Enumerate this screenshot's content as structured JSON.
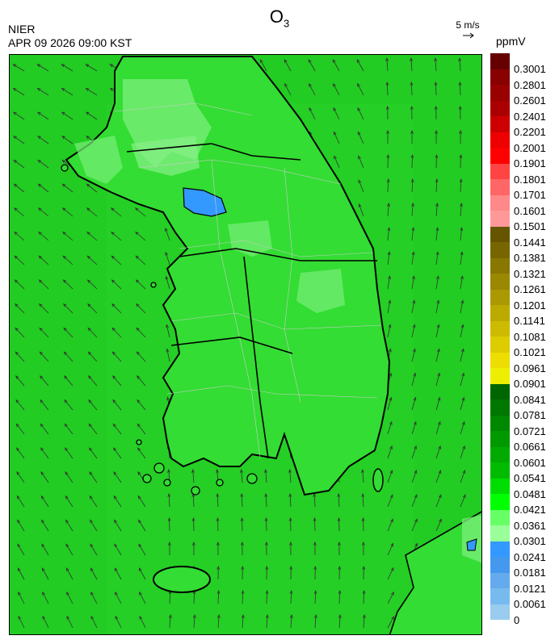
{
  "title": {
    "species": "O",
    "subscript": "3"
  },
  "agency": "NIER",
  "datetime": "APR 09 2026 09:00 KST",
  "wind_reference": {
    "label": "5 m/s",
    "arrow": "→"
  },
  "unit": "ppmV",
  "colors": {
    "sea": "#22cc22",
    "land": "#33dd33",
    "light_patch": "#77ee77",
    "high_patch": "#3399ff",
    "coast": "#000000",
    "border": "#cccccc"
  },
  "legend": {
    "labels": [
      "0.3001",
      "0.2801",
      "0.2601",
      "0.2401",
      "0.2201",
      "0.2001",
      "0.1901",
      "0.1801",
      "0.1701",
      "0.1601",
      "0.1501",
      "0.1441",
      "0.1381",
      "0.1321",
      "0.1261",
      "0.1201",
      "0.1141",
      "0.1081",
      "0.1021",
      "0.0961",
      "0.0901",
      "0.0841",
      "0.0781",
      "0.0721",
      "0.0661",
      "0.0601",
      "0.0541",
      "0.0481",
      "0.0421",
      "0.0361",
      "0.0301",
      "0.0241",
      "0.0181",
      "0.0121",
      "0.0061",
      "0"
    ],
    "colors": [
      "#660000",
      "#880000",
      "#990000",
      "#aa0000",
      "#cc0000",
      "#ee0000",
      "#ff0000",
      "#ff4444",
      "#ff6666",
      "#ff8888",
      "#ff9999",
      "#665500",
      "#776600",
      "#887700",
      "#998800",
      "#aa9900",
      "#bbaa00",
      "#ccbb00",
      "#ddcc00",
      "#eedd00",
      "#eeee00",
      "#006600",
      "#007700",
      "#008800",
      "#009900",
      "#00aa00",
      "#00bb00",
      "#00dd00",
      "#00ff00",
      "#66ff66",
      "#99ff99",
      "#3399ff",
      "#4499ee",
      "#66aaee",
      "#77bbee",
      "#99ccee"
    ]
  }
}
